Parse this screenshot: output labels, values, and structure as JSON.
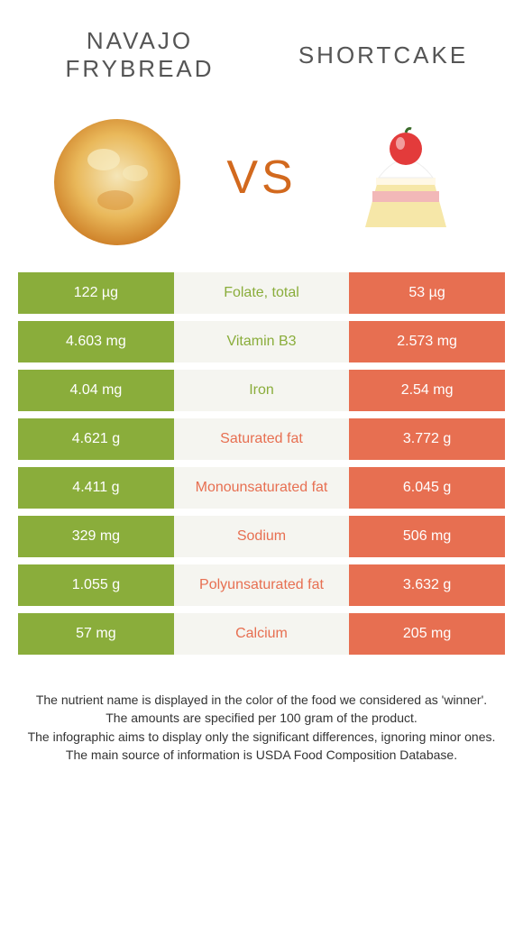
{
  "colors": {
    "green": "#8aad3b",
    "orange": "#e76f51",
    "mid_bg": "#f5f5f0",
    "text_mid": "#555555"
  },
  "food_left": {
    "title": "NAVAJO\nFRYBREAD"
  },
  "food_right": {
    "title": "SHORTCAKE"
  },
  "vs": "VS",
  "nutrients": [
    {
      "name": "Folate, total",
      "left": "122 µg",
      "right": "53 µg",
      "winner": "left"
    },
    {
      "name": "Vitamin B3",
      "left": "4.603 mg",
      "right": "2.573 mg",
      "winner": "left"
    },
    {
      "name": "Iron",
      "left": "4.04 mg",
      "right": "2.54 mg",
      "winner": "left"
    },
    {
      "name": "Saturated fat",
      "left": "4.621 g",
      "right": "3.772 g",
      "winner": "right"
    },
    {
      "name": "Monounsaturated fat",
      "left": "4.411 g",
      "right": "6.045 g",
      "winner": "right"
    },
    {
      "name": "Sodium",
      "left": "329 mg",
      "right": "506 mg",
      "winner": "right"
    },
    {
      "name": "Polyunsaturated fat",
      "left": "1.055 g",
      "right": "3.632 g",
      "winner": "right"
    },
    {
      "name": "Calcium",
      "left": "57 mg",
      "right": "205 mg",
      "winner": "right"
    }
  ],
  "footer_lines": [
    "The nutrient name is displayed in the color of the food we considered as 'winner'.",
    "The amounts are specified per 100 gram of the product.",
    "The infographic aims to display only the significant differences, ignoring minor ones.",
    "The main source of information is USDA Food Composition Database."
  ]
}
